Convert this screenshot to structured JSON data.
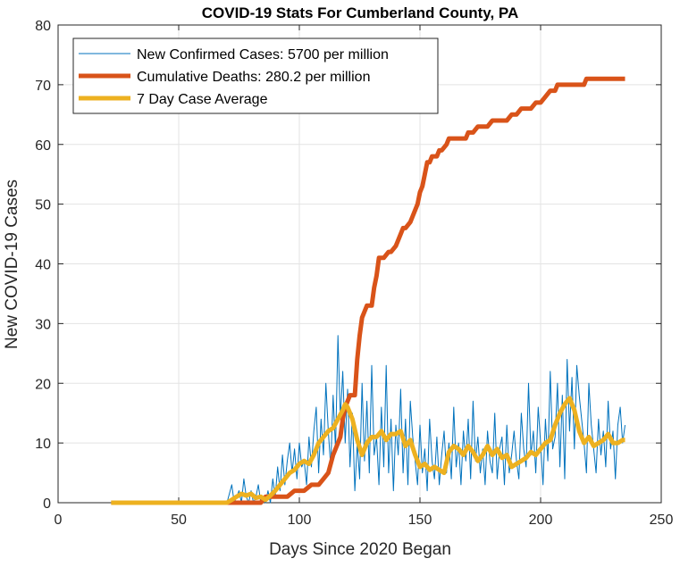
{
  "chart_data": {
    "type": "line",
    "title": "COVID-19 Stats For Cumberland County, PA",
    "xlabel": "Days Since 2020 Began",
    "ylabel": "New COVID-19 Cases",
    "xlim": [
      0,
      250
    ],
    "ylim": [
      0,
      80
    ],
    "xticks": [
      0,
      50,
      100,
      150,
      200,
      250
    ],
    "yticks": [
      0,
      10,
      20,
      30,
      40,
      50,
      60,
      70,
      80
    ],
    "grid": true,
    "legend_position": "top-left",
    "series": [
      {
        "name": "New Confirmed Cases: 5700 per million",
        "color": "#0072BD",
        "style": "thin",
        "x": [
          22,
          70,
          72,
          73,
          74,
          75,
          76,
          77,
          78,
          79,
          80,
          81,
          82,
          83,
          84,
          85,
          86,
          87,
          88,
          89,
          90,
          91,
          92,
          93,
          94,
          95,
          96,
          97,
          98,
          99,
          100,
          101,
          102,
          103,
          104,
          105,
          106,
          107,
          108,
          109,
          110,
          111,
          112,
          113,
          114,
          115,
          116,
          117,
          118,
          119,
          120,
          121,
          122,
          123,
          124,
          125,
          126,
          127,
          128,
          129,
          130,
          131,
          132,
          133,
          134,
          135,
          136,
          137,
          138,
          139,
          140,
          141,
          142,
          143,
          144,
          145,
          146,
          147,
          148,
          149,
          150,
          151,
          152,
          153,
          154,
          155,
          156,
          157,
          158,
          159,
          160,
          161,
          162,
          163,
          164,
          165,
          166,
          167,
          168,
          169,
          170,
          171,
          172,
          173,
          174,
          175,
          176,
          177,
          178,
          179,
          180,
          181,
          182,
          183,
          184,
          185,
          186,
          187,
          188,
          189,
          190,
          191,
          192,
          193,
          194,
          195,
          196,
          197,
          198,
          199,
          200,
          201,
          202,
          203,
          204,
          205,
          206,
          207,
          208,
          209,
          210,
          211,
          212,
          213,
          214,
          215,
          216,
          217,
          218,
          219,
          220,
          221,
          222,
          223,
          224,
          225,
          226,
          227,
          228,
          229,
          230,
          231,
          232,
          233,
          234,
          235
        ],
        "y": [
          0,
          0,
          3,
          0,
          1,
          2,
          0,
          4,
          1,
          0,
          2,
          0,
          1,
          3,
          0,
          1,
          0,
          2,
          0,
          4,
          1,
          6,
          2,
          8,
          3,
          7,
          10,
          5,
          9,
          4,
          10,
          6,
          7,
          3,
          11,
          6,
          12,
          16,
          5,
          14,
          8,
          20,
          12,
          6,
          18,
          9,
          28,
          14,
          22,
          10,
          19,
          6,
          15,
          2,
          10,
          4,
          20,
          7,
          17,
          5,
          23,
          8,
          11,
          3,
          16,
          6,
          23,
          5,
          14,
          2,
          13,
          8,
          19,
          5,
          14,
          3,
          17,
          11,
          7,
          3,
          13,
          5,
          9,
          2,
          14,
          7,
          4,
          11,
          3,
          8,
          12,
          5,
          10,
          4,
          16,
          6,
          10,
          3,
          12,
          7,
          14,
          4,
          17,
          7,
          11,
          5,
          9,
          3,
          12,
          7,
          5,
          15,
          4,
          9,
          11,
          3,
          13,
          5,
          8,
          12,
          7,
          4,
          15,
          9,
          6,
          20,
          8,
          12,
          5,
          16,
          10,
          3,
          14,
          7,
          22,
          9,
          11,
          20,
          6,
          18,
          4,
          24,
          12,
          21,
          9,
          23,
          18,
          14,
          10,
          5,
          20,
          13,
          9,
          5,
          14,
          8,
          12,
          6,
          17,
          9,
          12,
          4,
          13,
          16,
          10,
          13
        ],
        "note_unused": ""
      },
      {
        "name": "Cumulative Deaths: 280.2 per million",
        "color": "#D95319",
        "style": "thick",
        "x": [
          22,
          83,
          84,
          86,
          88,
          90,
          95,
          98,
          102,
          105,
          108,
          110,
          112,
          114,
          115,
          117,
          118,
          119,
          120,
          121,
          122,
          123,
          124,
          125,
          126,
          127,
          128,
          129,
          130,
          131,
          132,
          133,
          135,
          137,
          138,
          140,
          141,
          143,
          144,
          146,
          147,
          149,
          150,
          151,
          152,
          153,
          154,
          155,
          156,
          157,
          158,
          159,
          161,
          162,
          163,
          164,
          165,
          166,
          168,
          169,
          170,
          172,
          174,
          176,
          178,
          180,
          181,
          183,
          184,
          186,
          188,
          190,
          192,
          194,
          196,
          198,
          200,
          202,
          204,
          206,
          207,
          209,
          211,
          213,
          215,
          217,
          218,
          219,
          220,
          221,
          224,
          228,
          232,
          235
        ],
        "y": [
          0,
          0,
          0,
          1,
          1,
          1,
          1,
          2,
          2,
          3,
          3,
          4,
          5,
          8,
          9,
          11,
          14,
          16,
          17,
          18,
          18,
          18,
          24,
          28,
          31,
          32,
          33,
          33,
          33,
          36,
          38,
          41,
          41,
          42,
          42,
          43,
          44,
          46,
          46,
          47,
          48,
          50,
          52,
          53,
          55,
          57,
          57,
          58,
          58,
          58,
          59,
          59,
          60,
          61,
          61,
          61,
          61,
          61,
          61,
          61,
          62,
          62,
          63,
          63,
          63,
          64,
          64,
          64,
          64,
          64,
          65,
          65,
          66,
          66,
          66,
          67,
          67,
          68,
          69,
          69,
          70,
          70,
          70,
          70,
          70,
          70,
          70,
          71,
          71,
          71,
          71,
          71,
          71,
          71
        ]
      },
      {
        "name": "7 Day Case Average",
        "color": "#EDB120",
        "style": "thick",
        "x": [
          22,
          70,
          72,
          74,
          76,
          78,
          80,
          82,
          84,
          86,
          88,
          90,
          92,
          94,
          96,
          98,
          100,
          102,
          104,
          106,
          108,
          110,
          112,
          114,
          116,
          118,
          119,
          120,
          121,
          122,
          124,
          126,
          128,
          130,
          132,
          134,
          136,
          138,
          140,
          142,
          144,
          146,
          148,
          150,
          152,
          154,
          156,
          158,
          160,
          162,
          164,
          166,
          168,
          170,
          172,
          174,
          176,
          178,
          180,
          182,
          184,
          186,
          188,
          190,
          192,
          194,
          196,
          198,
          200,
          202,
          204,
          206,
          208,
          210,
          211,
          212,
          214,
          216,
          218,
          220,
          222,
          224,
          226,
          228,
          230,
          232,
          234,
          235
        ],
        "y": [
          0,
          0,
          0.5,
          1,
          1.5,
          1.2,
          1.5,
          0.8,
          1,
          0.5,
          1.2,
          2,
          3,
          4,
          5,
          5.5,
          6.5,
          7,
          6.5,
          8,
          10,
          11,
          12,
          12.5,
          14,
          15.5,
          16.5,
          16,
          15,
          14,
          10.5,
          8,
          10,
          11,
          11,
          12,
          10.5,
          11.5,
          11.5,
          12,
          9.5,
          10.5,
          8,
          6,
          6.5,
          5.5,
          6,
          5.5,
          5,
          8.5,
          9.5,
          9,
          8,
          9.5,
          8.5,
          7,
          8,
          9.5,
          8,
          9,
          7.5,
          8,
          6,
          6.5,
          7,
          7.5,
          8.5,
          8,
          9,
          10,
          10.5,
          13,
          15,
          16.5,
          17,
          17.5,
          15.5,
          12,
          10,
          11,
          9.5,
          10,
          10.5,
          11.5,
          10,
          10,
          10.5,
          10.5
        ]
      }
    ]
  }
}
